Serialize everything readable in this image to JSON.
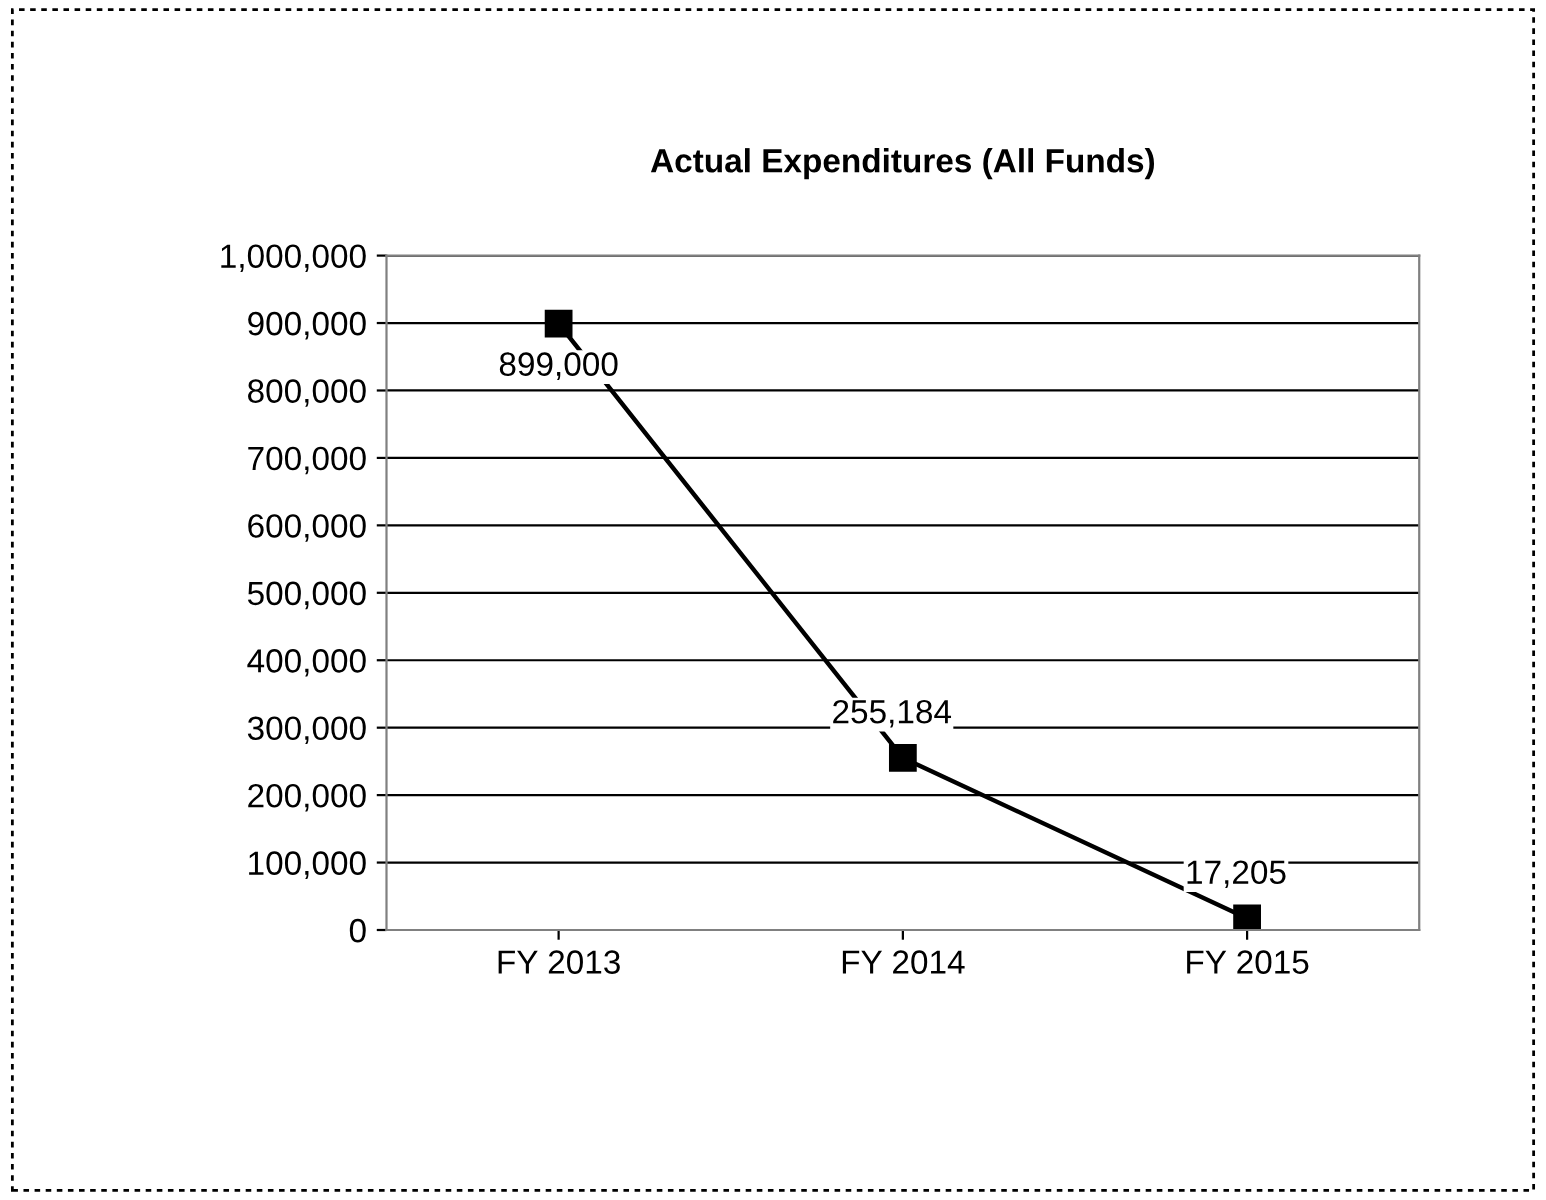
{
  "chart_data": {
    "type": "line",
    "title": "Actual Expenditures (All Funds)",
    "categories": [
      "FY 2013",
      "FY 2014",
      "FY 2015"
    ],
    "series": [
      {
        "color": "#000000",
        "values": [
          899000,
          255184,
          17205
        ],
        "value_labels": [
          "899,000",
          "255,184",
          "17,205"
        ]
      }
    ],
    "ylim": [
      0,
      1000000
    ],
    "yticks": [
      {
        "value": 0,
        "label": "0"
      },
      {
        "value": 100000,
        "label": "100,000"
      },
      {
        "value": 200000,
        "label": "200,000"
      },
      {
        "value": 300000,
        "label": "300,000"
      },
      {
        "value": 400000,
        "label": "400,000"
      },
      {
        "value": 500000,
        "label": "500,000"
      },
      {
        "value": 600000,
        "label": "600,000"
      },
      {
        "value": 700000,
        "label": "700,000"
      },
      {
        "value": 800000,
        "label": "800,000"
      },
      {
        "value": 900000,
        "label": "900,000"
      },
      {
        "value": 1000000,
        "label": "1,000,000"
      }
    ],
    "grid": "y",
    "marker": "square",
    "line_style": "solid"
  }
}
